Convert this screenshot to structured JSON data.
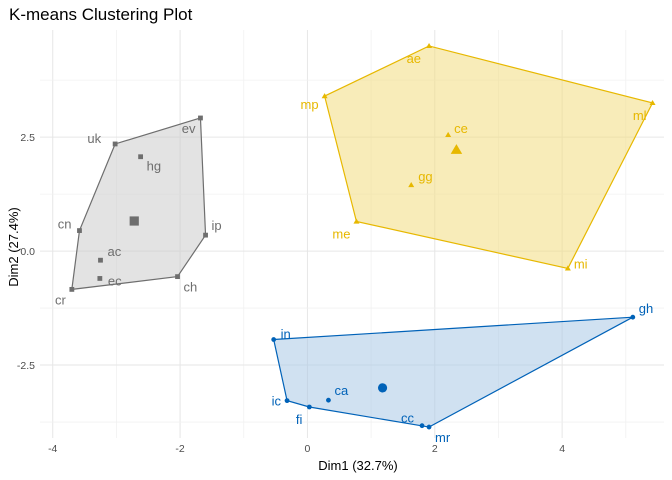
{
  "chart_data": {
    "type": "scatter",
    "title": "K-means Clustering Plot",
    "xlabel": "Dim1 (32.7%)",
    "ylabel": "Dim2 (27.4%)",
    "xlim": [
      -4.2,
      5.6
    ],
    "ylim": [
      -4.1,
      4.85
    ],
    "xticks": [
      -4,
      -2,
      0,
      2,
      4
    ],
    "xtick_labels": [
      "-4",
      "-2",
      "0",
      "2",
      "4"
    ],
    "yticks": [
      -2.5,
      0,
      2.5
    ],
    "ytick_labels": [
      "-2.5",
      "0.0",
      "2.5"
    ],
    "grid": true,
    "legend": "none",
    "clusters": [
      {
        "id": 1,
        "color": "#6e6e6e",
        "fill": "#cccccc",
        "marker": "square",
        "centroid": [
          -2.72,
          0.66
        ],
        "points": [
          {
            "label": "uk",
            "x": -3.02,
            "y": 2.35
          },
          {
            "label": "ev",
            "x": -1.68,
            "y": 2.92
          },
          {
            "label": "hg",
            "x": -2.62,
            "y": 2.07
          },
          {
            "label": "cn",
            "x": -3.58,
            "y": 0.45
          },
          {
            "label": "ip",
            "x": -1.6,
            "y": 0.35
          },
          {
            "label": "ac",
            "x": -3.25,
            "y": -0.2
          },
          {
            "label": "ch",
            "x": -2.04,
            "y": -0.56
          },
          {
            "label": "cr",
            "x": -3.7,
            "y": -0.84
          },
          {
            "label": "ec",
            "x": -3.26,
            "y": -0.6
          }
        ]
      },
      {
        "id": 2,
        "color": "#e7b800",
        "fill": "#f3dc80",
        "marker": "triangle",
        "centroid": [
          2.34,
          2.22
        ],
        "points": [
          {
            "label": "ae",
            "x": 1.91,
            "y": 4.5
          },
          {
            "label": "mp",
            "x": 0.27,
            "y": 3.4
          },
          {
            "label": "ml",
            "x": 5.42,
            "y": 3.25
          },
          {
            "label": "ce",
            "x": 2.21,
            "y": 2.55
          },
          {
            "label": "gg",
            "x": 1.63,
            "y": 1.45
          },
          {
            "label": "me",
            "x": 0.77,
            "y": 0.65
          },
          {
            "label": "mi",
            "x": 4.09,
            "y": -0.38
          }
        ]
      },
      {
        "id": 3,
        "color": "#0062b8",
        "fill": "#a9c8e6",
        "marker": "circle",
        "centroid": [
          1.18,
          -3.0
        ],
        "points": [
          {
            "label": "gh",
            "x": 5.11,
            "y": -1.45
          },
          {
            "label": "in",
            "x": -0.53,
            "y": -1.94
          },
          {
            "label": "ca",
            "x": 0.33,
            "y": -3.27
          },
          {
            "label": "ic",
            "x": -0.32,
            "y": -3.28
          },
          {
            "label": "fi",
            "x": 0.03,
            "y": -3.42
          },
          {
            "label": "cc",
            "x": 1.8,
            "y": -3.83
          },
          {
            "label": "mr",
            "x": 1.91,
            "y": -3.86
          }
        ]
      }
    ]
  }
}
